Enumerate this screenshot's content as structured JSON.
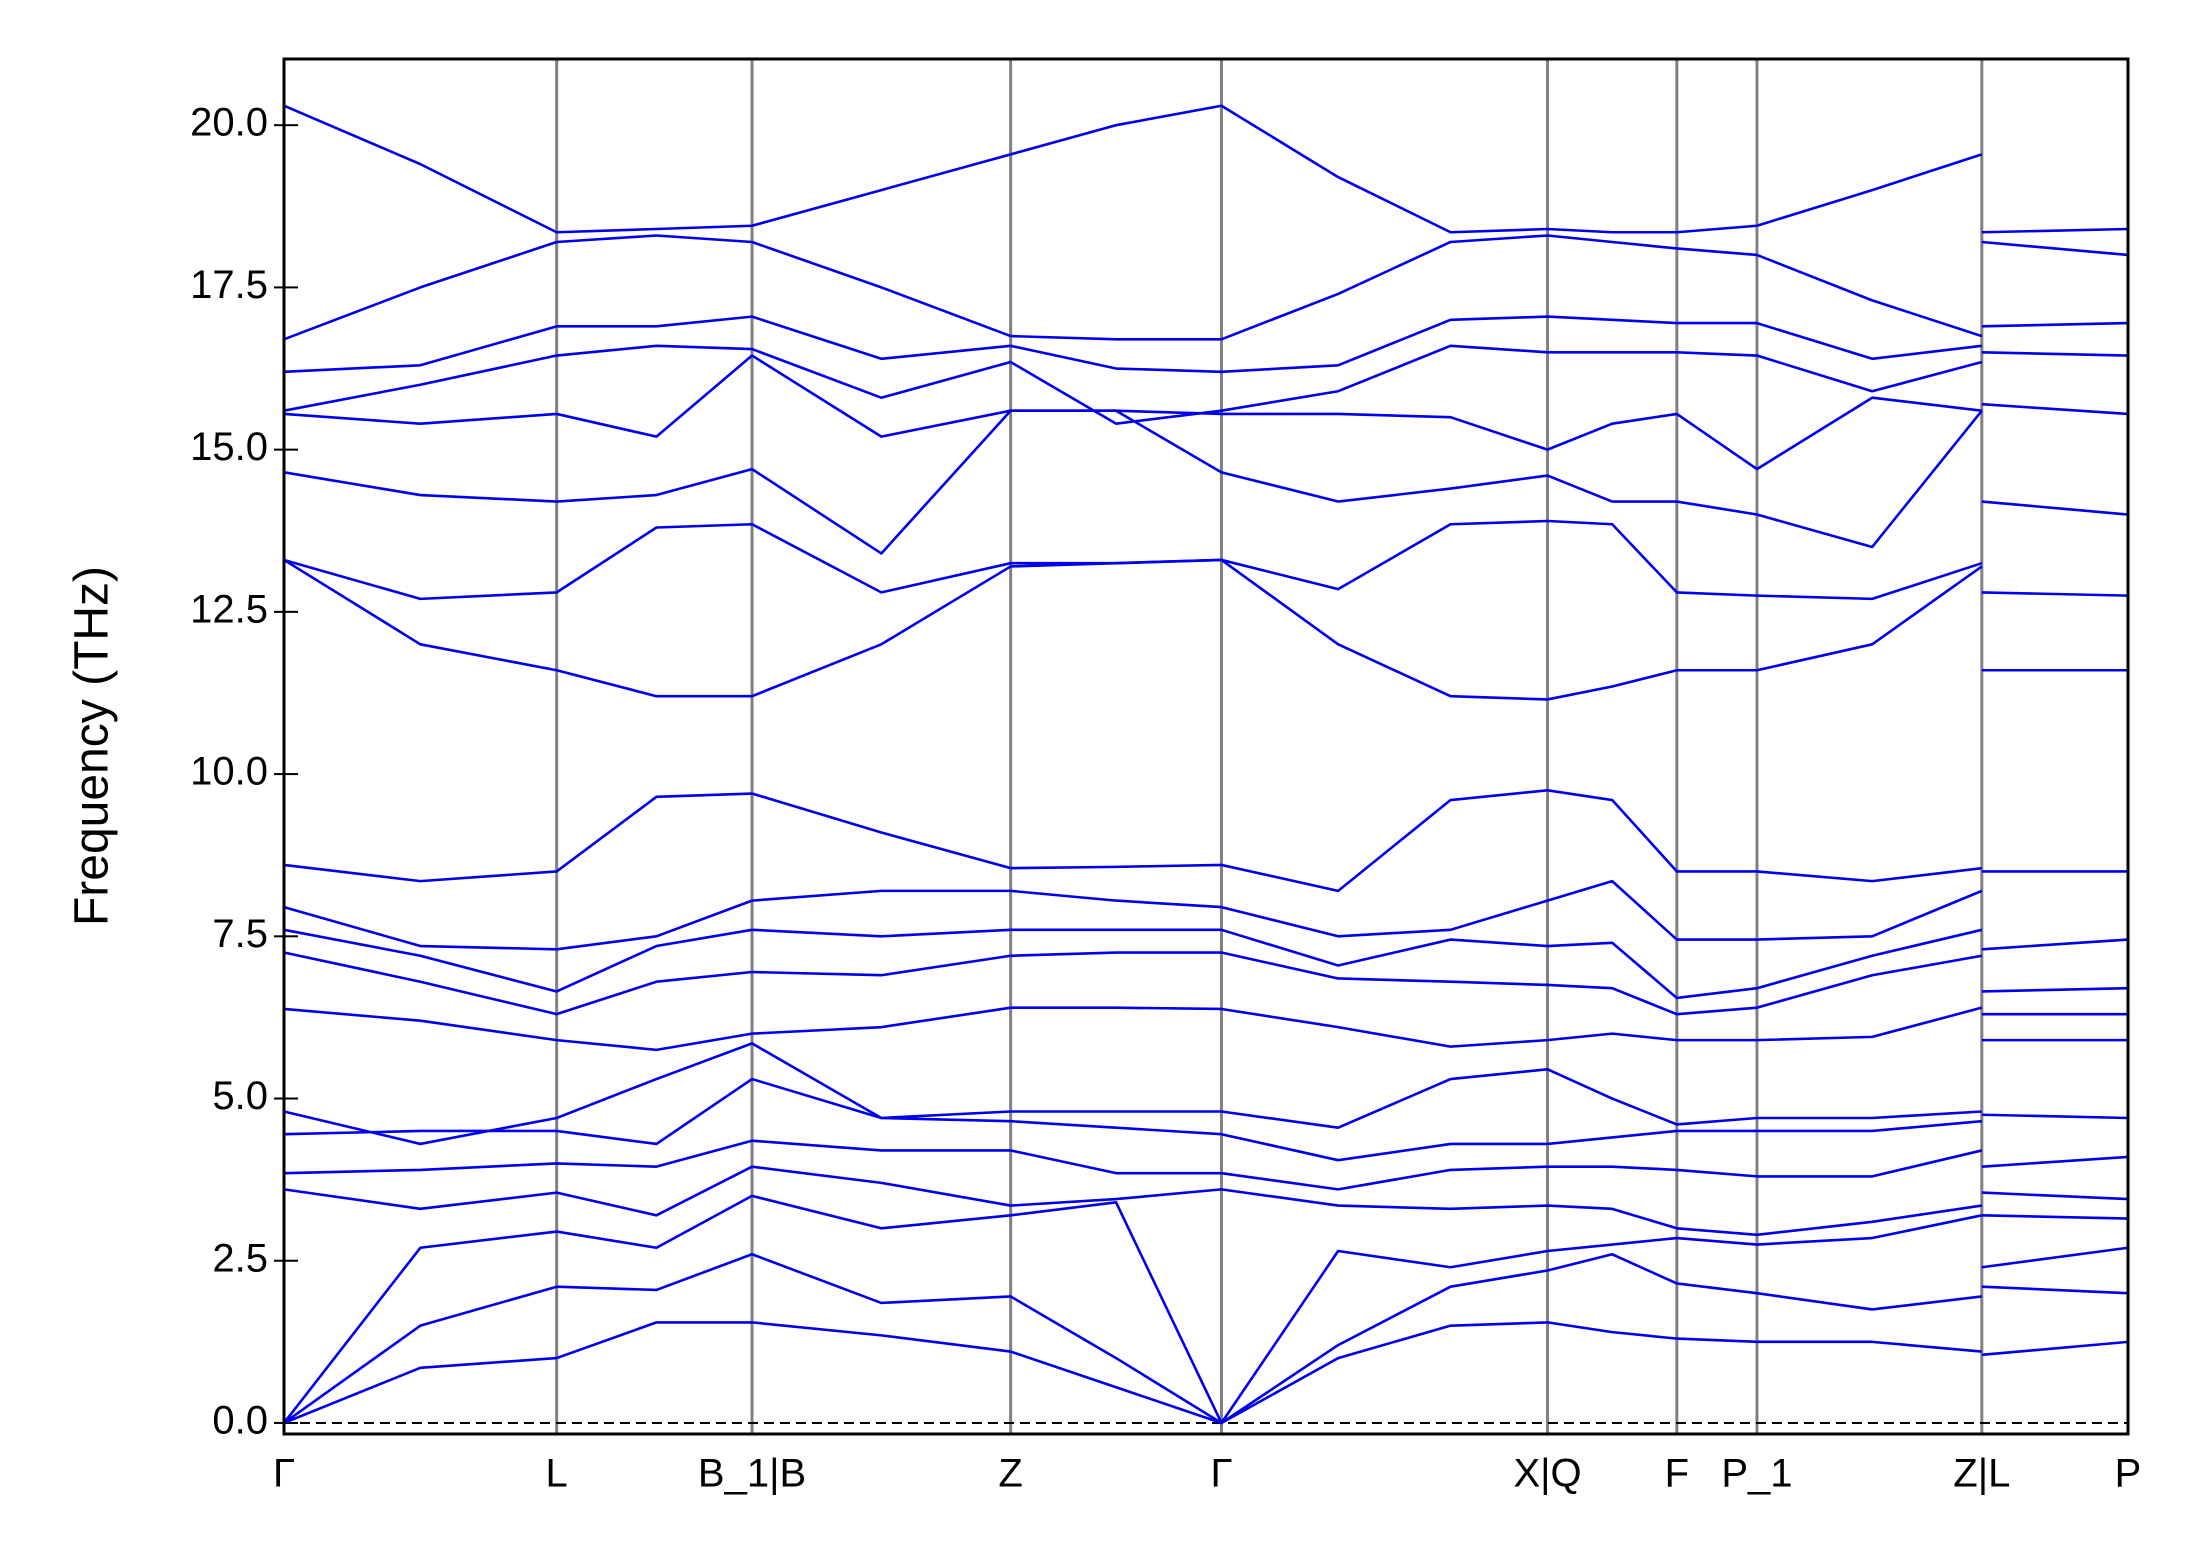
{
  "chart_data": {
    "type": "line",
    "y_label": "Frequency (THz)",
    "color": "#0000ee",
    "x": [
      0,
      0.97,
      1.94,
      2.65,
      3.33,
      4.25,
      5.17,
      5.92,
      6.67,
      7.5,
      8.3,
      8.99,
      9.45,
      9.91,
      10.48,
      11.3,
      12.08,
      12.08,
      12.08,
      13.12
    ],
    "xlim": [
      0,
      13.12
    ],
    "xticks": [
      {
        "value": 0,
        "label": "Γ"
      },
      {
        "value": 1.94,
        "label": "L"
      },
      {
        "value": 3.33,
        "label": "B_1|B"
      },
      {
        "value": 5.17,
        "label": "Z"
      },
      {
        "value": 6.67,
        "label": "Γ"
      },
      {
        "value": 8.99,
        "label": "X|Q"
      },
      {
        "value": 9.91,
        "label": "F"
      },
      {
        "value": 10.48,
        "label": "P_1"
      },
      {
        "value": 12.08,
        "label": "Z|L"
      },
      {
        "value": 13.12,
        "label": "P"
      }
    ],
    "ylim": [
      -0.17,
      21.02
    ],
    "yticks": [
      {
        "value": 0,
        "label": "0.0"
      },
      2.5,
      {
        "value": 5,
        "label": "5.0"
      },
      7.5,
      {
        "value": 10,
        "label": "10.0"
      },
      12.5,
      {
        "value": 15,
        "label": "15.0"
      },
      17.5,
      {
        "value": 20,
        "label": "20.0"
      }
    ],
    "hlines": [
      0
    ],
    "series": [
      {
        "values": [
          0,
          0.85,
          1.0,
          1.55,
          1.55,
          1.35,
          1.1,
          0.55,
          0,
          1.0,
          1.5,
          1.55,
          1.4,
          1.3,
          1.25,
          1.25,
          1.1,
          null,
          1.05,
          1.25
        ]
      },
      {
        "values": [
          0,
          1.5,
          2.1,
          2.05,
          2.6,
          1.85,
          1.95,
          1.0,
          0,
          1.2,
          2.1,
          2.35,
          2.6,
          2.15,
          2.0,
          1.75,
          1.95,
          null,
          2.1,
          2.0
        ]
      },
      {
        "values": [
          0,
          2.7,
          2.95,
          2.7,
          3.5,
          3.0,
          3.2,
          3.4,
          0,
          2.65,
          2.4,
          2.65,
          2.75,
          2.85,
          2.75,
          2.85,
          3.2,
          null,
          2.4,
          2.7
        ]
      },
      {
        "values": [
          3.6,
          3.3,
          3.55,
          3.2,
          3.95,
          3.7,
          3.35,
          3.45,
          3.6,
          3.35,
          3.3,
          3.35,
          3.3,
          3.0,
          2.9,
          3.1,
          3.35,
          null,
          3.2,
          3.15
        ]
      },
      {
        "values": [
          3.85,
          3.9,
          4.0,
          3.95,
          4.35,
          4.2,
          4.2,
          3.85,
          3.85,
          3.6,
          3.9,
          3.95,
          3.95,
          3.9,
          3.8,
          3.8,
          4.2,
          null,
          3.55,
          3.45
        ]
      },
      {
        "values": [
          4.45,
          4.5,
          4.5,
          4.3,
          5.3,
          4.7,
          4.65,
          4.55,
          4.45,
          4.05,
          4.3,
          4.3,
          4.4,
          4.5,
          4.5,
          4.5,
          4.65,
          null,
          3.95,
          4.1
        ]
      },
      {
        "values": [
          4.8,
          4.3,
          4.7,
          5.3,
          5.85,
          4.7,
          4.8,
          4.8,
          4.8,
          4.55,
          5.3,
          5.45,
          5.0,
          4.6,
          4.7,
          4.7,
          4.8,
          null,
          4.75,
          4.7
        ]
      },
      {
        "values": [
          6.38,
          6.2,
          5.9,
          5.75,
          6.0,
          6.1,
          6.4,
          6.4,
          6.38,
          6.1,
          5.8,
          5.9,
          6.0,
          5.9,
          5.9,
          5.95,
          6.4,
          null,
          5.9,
          5.9
        ]
      },
      {
        "values": [
          7.25,
          6.8,
          6.3,
          6.8,
          6.95,
          6.9,
          7.2,
          7.25,
          7.25,
          6.85,
          6.8,
          6.75,
          6.7,
          6.3,
          6.4,
          6.9,
          7.2,
          null,
          6.3,
          6.3
        ]
      },
      {
        "values": [
          7.6,
          7.2,
          6.65,
          7.35,
          7.6,
          7.5,
          7.6,
          7.6,
          7.6,
          7.05,
          7.45,
          7.35,
          7.4,
          6.55,
          6.7,
          7.2,
          7.6,
          null,
          6.65,
          6.7
        ]
      },
      {
        "values": [
          7.95,
          7.35,
          7.3,
          7.5,
          8.05,
          8.2,
          8.2,
          8.05,
          7.95,
          7.5,
          7.6,
          8.05,
          8.35,
          7.45,
          7.45,
          7.5,
          8.2,
          null,
          7.3,
          7.45
        ]
      },
      {
        "values": [
          8.6,
          8.35,
          8.5,
          9.65,
          9.7,
          9.1,
          8.55,
          8.57,
          8.6,
          8.2,
          9.6,
          9.75,
          9.6,
          8.5,
          8.5,
          8.35,
          8.55,
          null,
          8.5,
          8.5
        ]
      },
      {
        "values": [
          13.3,
          12.0,
          11.6,
          11.2,
          11.2,
          12.0,
          13.2,
          13.25,
          13.3,
          12.0,
          11.2,
          11.15,
          11.35,
          11.6,
          11.6,
          12.0,
          13.2,
          null,
          11.6,
          11.6
        ]
      },
      {
        "values": [
          13.3,
          12.7,
          12.8,
          13.8,
          13.85,
          12.8,
          13.25,
          13.25,
          13.3,
          12.85,
          13.85,
          13.9,
          13.85,
          12.8,
          12.75,
          12.7,
          13.25,
          null,
          12.8,
          12.75
        ]
      },
      {
        "values": [
          14.65,
          14.3,
          14.2,
          14.3,
          14.7,
          13.4,
          15.6,
          15.6,
          14.65,
          14.2,
          14.4,
          14.6,
          14.2,
          14.2,
          14.0,
          13.5,
          15.6,
          null,
          14.2,
          14.0
        ]
      },
      {
        "values": [
          15.55,
          15.4,
          15.55,
          15.2,
          16.45,
          15.2,
          15.6,
          15.6,
          15.55,
          15.55,
          15.5,
          15.0,
          15.4,
          15.55,
          14.7,
          15.8,
          15.6,
          null,
          15.7,
          15.55
        ]
      },
      {
        "values": [
          15.6,
          16.0,
          16.45,
          16.6,
          16.55,
          15.8,
          16.35,
          15.4,
          15.6,
          15.9,
          16.6,
          16.5,
          16.5,
          16.5,
          16.45,
          15.9,
          16.35,
          null,
          16.5,
          16.45
        ]
      },
      {
        "values": [
          16.2,
          16.3,
          16.9,
          16.9,
          17.05,
          16.4,
          16.6,
          16.25,
          16.2,
          16.3,
          17.0,
          17.05,
          17.0,
          16.95,
          16.95,
          16.4,
          16.6,
          null,
          16.9,
          16.95
        ]
      },
      {
        "values": [
          16.7,
          17.5,
          18.2,
          18.3,
          18.2,
          17.5,
          16.75,
          16.7,
          16.7,
          17.4,
          18.2,
          18.3,
          18.2,
          18.1,
          18.0,
          17.3,
          16.75,
          null,
          18.2,
          18.0
        ]
      },
      {
        "values": [
          20.3,
          19.4,
          18.35,
          18.4,
          18.45,
          19.0,
          19.55,
          20.0,
          20.3,
          19.2,
          18.35,
          18.4,
          18.35,
          18.35,
          18.45,
          19.0,
          19.55,
          null,
          18.35,
          18.4
        ]
      }
    ]
  }
}
